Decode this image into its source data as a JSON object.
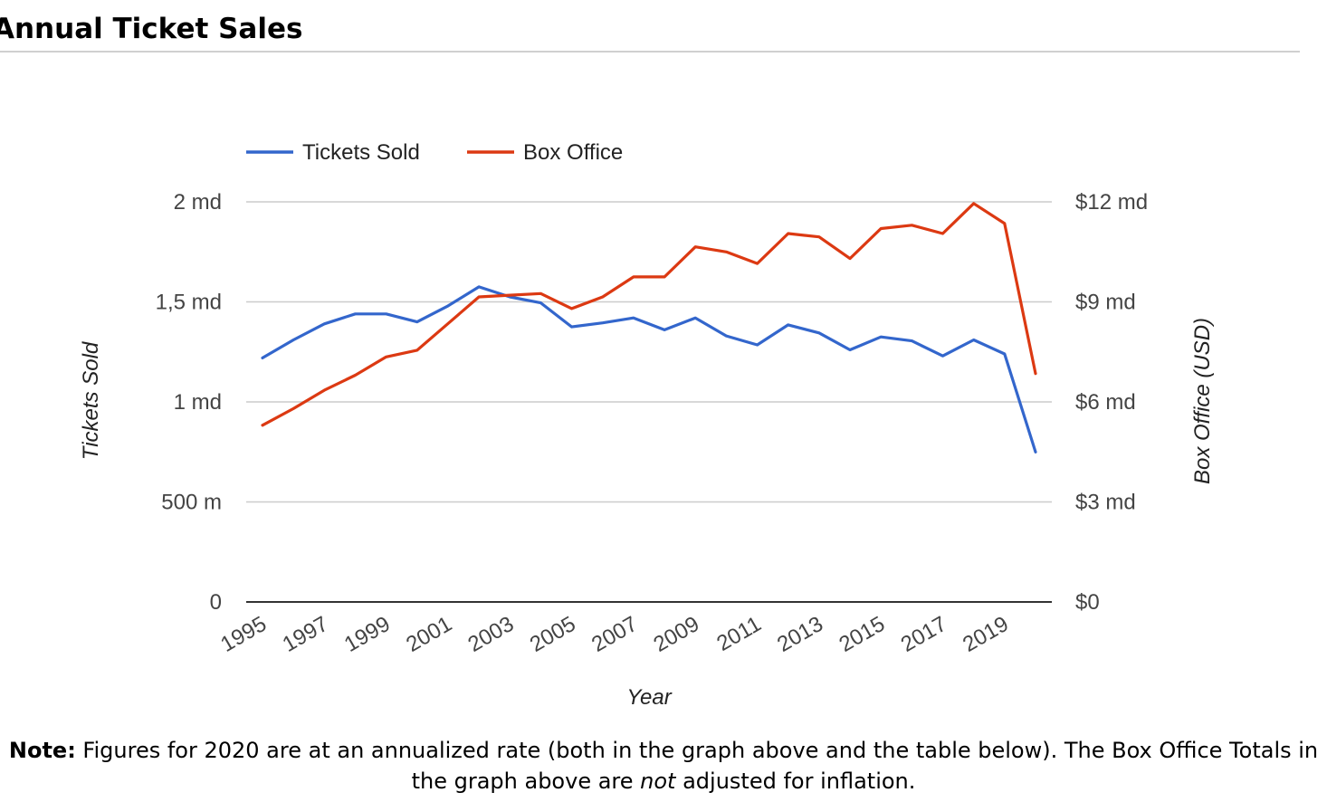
{
  "page": {
    "title": "Annual Ticket Sales",
    "note": {
      "label": "Note:",
      "text_1": " Figures for 2020 are at an annualized rate (both in the graph above and the table below). The Box Office Totals in the graph above are ",
      "emphasis": "not",
      "text_2": " adjusted for inflation."
    }
  },
  "chart_data": {
    "type": "line",
    "xlabel": "Year",
    "ylabel_left": "Tickets Sold",
    "ylabel_right": "Box Office (USD)",
    "x_tick_labels": [
      "1995",
      "1997",
      "1999",
      "2001",
      "2003",
      "2005",
      "2007",
      "2009",
      "2011",
      "2013",
      "2015",
      "2017",
      "2019"
    ],
    "left_axis": {
      "ylim": [
        0,
        2000000000
      ],
      "tick_values": [
        0,
        500000000,
        1000000000,
        1500000000,
        2000000000
      ],
      "tick_labels": [
        "0",
        "500 m",
        "1 md",
        "1,5 md",
        "2 md"
      ]
    },
    "right_axis": {
      "ylim": [
        0,
        12000000000
      ],
      "tick_values": [
        0,
        3000000000,
        6000000000,
        9000000000,
        12000000000
      ],
      "tick_labels": [
        "$0",
        "$3 md",
        "$6 md",
        "$9 md",
        "$12 md"
      ]
    },
    "legend_position": "top-left",
    "grid": true,
    "x": [
      1995,
      1996,
      1997,
      1998,
      1999,
      2000,
      2001,
      2002,
      2003,
      2004,
      2005,
      2006,
      2007,
      2008,
      2009,
      2010,
      2011,
      2012,
      2013,
      2014,
      2015,
      2016,
      2017,
      2018,
      2019,
      2020
    ],
    "series": [
      {
        "name": "Tickets Sold",
        "axis": "left",
        "color": "#3366cc",
        "values": [
          1220000000,
          1310000000,
          1390000000,
          1440000000,
          1440000000,
          1400000000,
          1480000000,
          1575000000,
          1525000000,
          1495000000,
          1375000000,
          1395000000,
          1420000000,
          1360000000,
          1420000000,
          1330000000,
          1285000000,
          1385000000,
          1345000000,
          1260000000,
          1325000000,
          1305000000,
          1230000000,
          1310000000,
          1240000000,
          750000000
        ]
      },
      {
        "name": "Box Office",
        "axis": "right",
        "color": "#dc3912",
        "values": [
          5300000000,
          5800000000,
          6350000000,
          6800000000,
          7350000000,
          7550000000,
          8350000000,
          9150000000,
          9200000000,
          9250000000,
          8800000000,
          9150000000,
          9750000000,
          9750000000,
          10650000000,
          10500000000,
          10150000000,
          11050000000,
          10950000000,
          10300000000,
          11200000000,
          11300000000,
          11050000000,
          11950000000,
          11350000000,
          6850000000
        ]
      }
    ]
  }
}
